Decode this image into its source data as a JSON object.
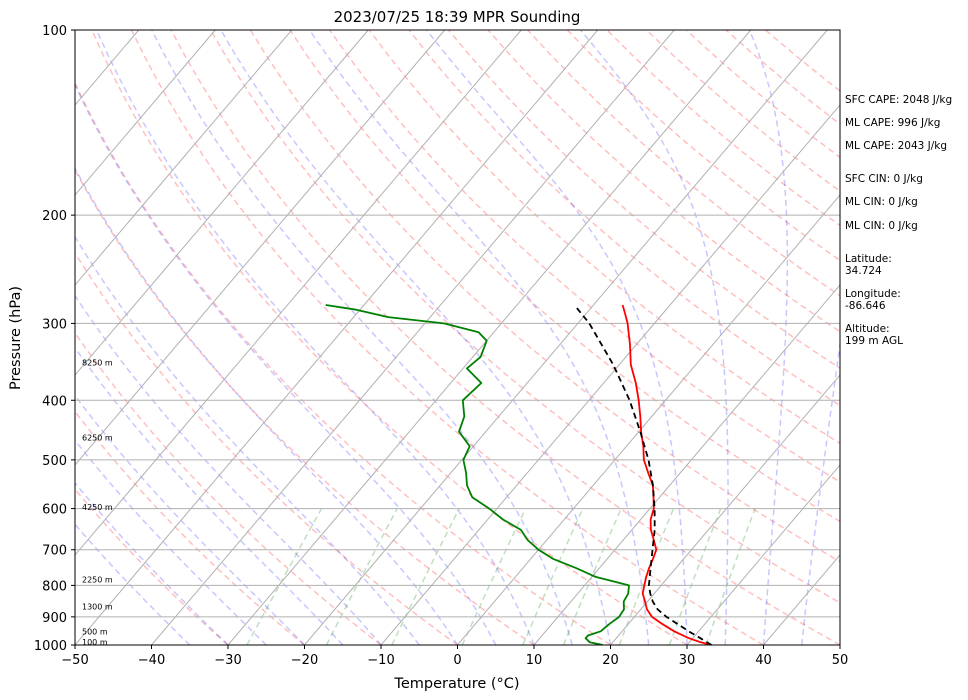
{
  "chart_data": {
    "type": "line",
    "subtype": "skew-t log-p",
    "title": "2023/07/25 18:39 MPR Sounding",
    "xlabel": "Temperature (°C)",
    "ylabel": "Pressure (hPa)",
    "xlim": [
      -50,
      50
    ],
    "ylim": [
      1000,
      100
    ],
    "y_scale": "log",
    "grid": true,
    "x_ticks": [
      "−50",
      "−40",
      "−30",
      "−20",
      "−10",
      "0",
      "10",
      "20",
      "30",
      "40",
      "50"
    ],
    "y_ticks": [
      "100",
      "200",
      "300",
      "400",
      "500",
      "600",
      "700",
      "800",
      "900",
      "1000"
    ],
    "height_labels": [
      {
        "text": "8250 m",
        "p": 347
      },
      {
        "text": "6250 m",
        "p": 460
      },
      {
        "text": "4250 m",
        "p": 597
      },
      {
        "text": "2250 m",
        "p": 783
      },
      {
        "text": "1300 m",
        "p": 866
      },
      {
        "text": "500 m",
        "p": 950
      },
      {
        "text": "100 m",
        "p": 988
      }
    ],
    "series": [
      {
        "color": "#ff0000",
        "description": "temperature",
        "points": [
          [
            1000,
            33.2
          ],
          [
            990,
            31.5
          ],
          [
            975,
            29.5
          ],
          [
            950,
            26.8
          ],
          [
            925,
            24.5
          ],
          [
            900,
            22.3
          ],
          [
            875,
            20.8
          ],
          [
            850,
            19.7
          ],
          [
            825,
            18.5
          ],
          [
            800,
            17.8
          ],
          [
            775,
            17.1
          ],
          [
            750,
            16.5
          ],
          [
            725,
            16.0
          ],
          [
            700,
            15.4
          ],
          [
            675,
            14.0
          ],
          [
            650,
            12.5
          ],
          [
            625,
            11.3
          ],
          [
            600,
            10.5
          ],
          [
            575,
            9.2
          ],
          [
            550,
            7.8
          ],
          [
            525,
            5.8
          ],
          [
            500,
            3.8
          ],
          [
            475,
            2.2
          ],
          [
            450,
            0.3
          ],
          [
            425,
            -1.5
          ],
          [
            400,
            -3.5
          ],
          [
            375,
            -5.8
          ],
          [
            350,
            -8.5
          ],
          [
            325,
            -10.8
          ],
          [
            300,
            -13.5
          ],
          [
            290,
            -14.8
          ],
          [
            280,
            -16.2
          ]
        ]
      },
      {
        "color": "#008000",
        "description": "dewpoint",
        "points": [
          [
            1000,
            19.0
          ],
          [
            990,
            17.0
          ],
          [
            975,
            16.0
          ],
          [
            965,
            16.0
          ],
          [
            950,
            17.2
          ],
          [
            925,
            17.5
          ],
          [
            900,
            18.0
          ],
          [
            875,
            17.8
          ],
          [
            850,
            16.9
          ],
          [
            825,
            16.6
          ],
          [
            800,
            15.8
          ],
          [
            775,
            10.5
          ],
          [
            750,
            7.0
          ],
          [
            725,
            3.0
          ],
          [
            700,
            0.0
          ],
          [
            675,
            -2.5
          ],
          [
            650,
            -4.5
          ],
          [
            625,
            -8.0
          ],
          [
            600,
            -11.0
          ],
          [
            575,
            -14.5
          ],
          [
            550,
            -16.5
          ],
          [
            525,
            -18.0
          ],
          [
            500,
            -19.8
          ],
          [
            475,
            -20.5
          ],
          [
            450,
            -23.5
          ],
          [
            425,
            -24.5
          ],
          [
            400,
            -26.5
          ],
          [
            375,
            -26.0
          ],
          [
            355,
            -29.5
          ],
          [
            340,
            -29.0
          ],
          [
            320,
            -30.0
          ],
          [
            310,
            -32.0
          ],
          [
            300,
            -37.5
          ],
          [
            293,
            -45.5
          ],
          [
            285,
            -50.5
          ],
          [
            280,
            -55.0
          ]
        ]
      },
      {
        "color": "#000000",
        "style": "dashed",
        "description": "parcel",
        "points": [
          [
            1000,
            33.2
          ],
          [
            975,
            31.0
          ],
          [
            950,
            28.7
          ],
          [
            925,
            26.5
          ],
          [
            900,
            24.2
          ],
          [
            875,
            22.2
          ],
          [
            850,
            20.7
          ],
          [
            825,
            19.5
          ],
          [
            800,
            18.4
          ],
          [
            750,
            16.7
          ],
          [
            700,
            14.9
          ],
          [
            650,
            13.0
          ],
          [
            600,
            10.6
          ],
          [
            550,
            7.8
          ],
          [
            500,
            4.4
          ],
          [
            450,
            0.2
          ],
          [
            400,
            -4.7
          ],
          [
            350,
            -10.8
          ],
          [
            300,
            -18.5
          ],
          [
            280,
            -22.5
          ]
        ]
      }
    ],
    "side_labels": [
      "SFC CAPE: 2048 J/kg",
      "ML CAPE: 996 J/kg",
      "ML CAPE: 2043 J/kg",
      "SFC CIN: 0 J/kg",
      "ML CIN: 0 J/kg",
      "ML CIN: 0 J/kg",
      "Latitude:",
      "34.724",
      "Longitude:",
      "-86.646",
      "Altitude:",
      "199 m AGL"
    ]
  }
}
